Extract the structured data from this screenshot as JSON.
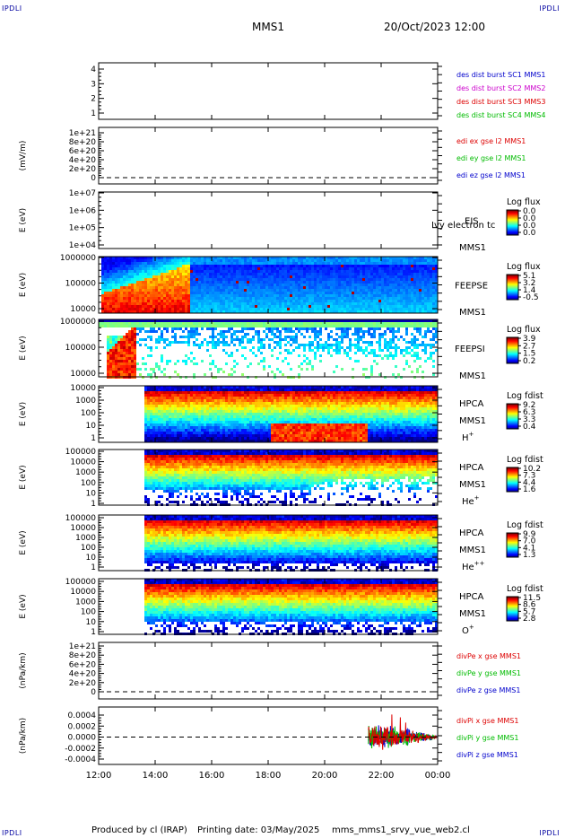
{
  "header": {
    "corner_left_top": "IPDLI",
    "corner_right_top": "IPDLI",
    "corner_left_bottom": "IPDLI",
    "corner_right_bottom": "IPDLI",
    "spacecraft": "MMS1",
    "date_time": "20/Oct/2023 12:00"
  },
  "footer": {
    "produced_by": "Produced by cl (IRAP)",
    "printing_date": "Printing date: 03/May/2025",
    "script_name": "mms_mms1_srvy_vue_web2.cl"
  },
  "colors": {
    "mms1": "#0000cc",
    "mms2": "#cc00cc",
    "mms3": "#dd0000",
    "mms4": "#00bb00",
    "x_comp": "#dd0000",
    "y_comp": "#00bb00",
    "z_comp": "#0000cc"
  },
  "chart_data": [
    {
      "id": "des_dist_burst",
      "type": "line",
      "yticks": [
        "4",
        "3",
        "2",
        "1"
      ],
      "ylabel": "",
      "legend": [
        {
          "text": "des dist burst SC1 MMS1",
          "color": "#0000cc"
        },
        {
          "text": "des dist burst SC2 MMS2",
          "color": "#cc00cc"
        },
        {
          "text": "des dist burst SC3 MMS3",
          "color": "#dd0000"
        },
        {
          "text": "des dist burst SC4 MMS4",
          "color": "#00bb00"
        }
      ]
    },
    {
      "id": "edi_e_gse",
      "type": "line",
      "yticks": [
        "1e+21",
        "8e+20",
        "6e+20",
        "4e+20",
        "2e+20",
        "0"
      ],
      "ylabel": "(mV/m)",
      "legend": [
        {
          "text": "edi ex gse l2 MMS1",
          "color": "#dd0000"
        },
        {
          "text": "edi ey gse l2 MMS1",
          "color": "#00bb00"
        },
        {
          "text": "edi ez gse l2 MMS1",
          "color": "#0000cc"
        }
      ]
    },
    {
      "id": "eis",
      "type": "heatmap",
      "yticks": [
        "1e+07",
        "1e+06",
        "1e+05",
        "1e+04"
      ],
      "ylabel": "E (eV)",
      "inst": "EIS",
      "note": "Ivy electron tc",
      "sc": "MMS1",
      "cb_title": "Log flux",
      "cb_ticks": [
        "0.0",
        "0.0",
        "0.0",
        "0.0"
      ]
    },
    {
      "id": "feeps_e",
      "type": "heatmap",
      "yticks": [
        "1000000",
        "100000",
        "10000"
      ],
      "ylabel": "E (eV)",
      "inst": "FEEPSE",
      "sc": "MMS1",
      "cb_title": "Log flux",
      "cb_ticks": [
        "5.1",
        "3.2",
        "1.4",
        "-0.5"
      ]
    },
    {
      "id": "feeps_i",
      "type": "heatmap",
      "yticks": [
        "1000000",
        "100000",
        "10000"
      ],
      "ylabel": "E (eV)",
      "inst": "FEEPSI",
      "sc": "MMS1",
      "cb_title": "Log flux",
      "cb_ticks": [
        "3.9",
        "2.7",
        "1.5",
        "0.2"
      ]
    },
    {
      "id": "hpca_h",
      "type": "heatmap",
      "yticks": [
        "10000",
        "1000",
        "100",
        "10",
        "1"
      ],
      "ylabel": "E (eV)",
      "inst": "HPCA",
      "sc": "MMS1",
      "species": "H",
      "charge": "+",
      "cb_title": "Log fdist",
      "cb_ticks": [
        "9.2",
        "6.3",
        "3.3",
        "0.4"
      ]
    },
    {
      "id": "hpca_he",
      "type": "heatmap",
      "yticks": [
        "100000",
        "10000",
        "1000",
        "100",
        "10",
        "1"
      ],
      "ylabel": "E (eV)",
      "inst": "HPCA",
      "sc": "MMS1",
      "species": "He",
      "charge": "+",
      "cb_title": "Log fdist",
      "cb_ticks": [
        "10.2",
        "7.3",
        "4.4",
        "1.6"
      ]
    },
    {
      "id": "hpca_hepp",
      "type": "heatmap",
      "yticks": [
        "100000",
        "10000",
        "1000",
        "100",
        "10",
        "1"
      ],
      "ylabel": "E (eV)",
      "inst": "HPCA",
      "sc": "MMS1",
      "species": "He",
      "charge": "++",
      "cb_title": "Log fdist",
      "cb_ticks": [
        "9.9",
        "7.0",
        "4.1",
        "1.3"
      ]
    },
    {
      "id": "hpca_o",
      "type": "heatmap",
      "yticks": [
        "100000",
        "10000",
        "1000",
        "100",
        "10",
        "1"
      ],
      "ylabel": "E (eV)",
      "inst": "HPCA",
      "sc": "MMS1",
      "species": "O",
      "charge": "+",
      "cb_title": "Log fdist",
      "cb_ticks": [
        "11.5",
        "8.6",
        "5.7",
        "2.8"
      ]
    },
    {
      "id": "divpe",
      "type": "line",
      "yticks": [
        "1e+21",
        "8e+20",
        "6e+20",
        "4e+20",
        "2e+20",
        "0"
      ],
      "ylabel": "(nPa/km)",
      "legend": [
        {
          "text": "divPe x gse MMS1",
          "color": "#dd0000"
        },
        {
          "text": "divPe y gse MMS1",
          "color": "#00bb00"
        },
        {
          "text": "divPe z gse MMS1",
          "color": "#0000cc"
        }
      ]
    },
    {
      "id": "divpi",
      "type": "line",
      "yticks": [
        "0.0004",
        "0.0002",
        "0.0000",
        "-0.0002",
        "-0.0004"
      ],
      "ylabel": "(nPa/km)",
      "legend": [
        {
          "text": "divPi x gse MMS1",
          "color": "#dd0000"
        },
        {
          "text": "divPi y gse MMS1",
          "color": "#00bb00"
        },
        {
          "text": "divPi z gse MMS1",
          "color": "#0000cc"
        }
      ]
    }
  ],
  "time_axis": {
    "ticks": [
      "12:00",
      "14:00",
      "16:00",
      "18:00",
      "20:00",
      "22:00",
      "00:00"
    ],
    "start_hour": 12,
    "end_hour": 24
  }
}
